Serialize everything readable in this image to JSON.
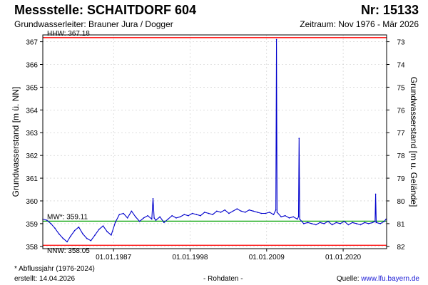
{
  "header": {
    "station": "Messstelle: SCHAITDORF 604",
    "number": "Nr: 15133",
    "aquifer": "Grundwasserleiter:   Brauner Jura / Dogger",
    "period": "Zeitraum: Nov 1976 - Mär 2026"
  },
  "footer": {
    "footnote": "* Abflussjahr (1976-2024)",
    "created": "erstellt:  14.04.2026",
    "rawdata": "- Rohdaten -",
    "source_label": "Quelle:",
    "source_link": "www.lfu.bayern.de"
  },
  "colors": {
    "series": "#0000cc",
    "hhw": "#ff0000",
    "nnw": "#ff0000",
    "mw": "#00a000",
    "grid": "#c8c8c8"
  },
  "chart_data": {
    "type": "line",
    "ylabel_left": "Grundwasserstand [m ü. NN]",
    "ylabel_right": "Grundwasserstand [m u. Gelände]",
    "x_range": [
      "1976-11-01",
      "2026-03-31"
    ],
    "ylim": [
      357.9,
      367.3
    ],
    "yticks_left": [
      358,
      359,
      360,
      361,
      362,
      363,
      364,
      365,
      366,
      367
    ],
    "yticks_right": [
      73,
      74,
      75,
      76,
      77,
      78,
      79,
      80,
      81,
      82
    ],
    "right_axis_reference": 440.0,
    "xticks": [
      {
        "date": "1987-01-01",
        "label": "01.01.1987"
      },
      {
        "date": "1998-01-01",
        "label": "01.01.1998"
      },
      {
        "date": "2009-01-01",
        "label": "01.01.2009"
      },
      {
        "date": "2020-01-01",
        "label": "01.01.2020"
      }
    ],
    "grid": true,
    "reference_lines": [
      {
        "name": "HHW",
        "label": "HHW: 367.18",
        "value": 367.18
      },
      {
        "name": "MW",
        "label": "MW*: 359.11",
        "value": 359.11
      },
      {
        "name": "NNW",
        "label": "NNW: 358.05",
        "value": 358.05
      }
    ],
    "series": [
      {
        "x": [
          "1976-11-01",
          "1977-06-01",
          "1978-01-01",
          "1978-08-01",
          "1979-03-01",
          "1979-10-01",
          "1980-05-01",
          "1980-11-01",
          "1981-06-01",
          "1982-01-01",
          "1982-08-01",
          "1983-03-01",
          "1983-10-01",
          "1984-05-01",
          "1984-12-01",
          "1985-07-01",
          "1986-02-01",
          "1986-09-01",
          "1987-04-01",
          "1987-11-01",
          "1988-06-01",
          "1989-01-01",
          "1989-08-01",
          "1990-03-01",
          "1990-10-01",
          "1991-05-01",
          "1991-12-01",
          "1992-07-01",
          "1992-09-01",
          "1992-11-01",
          "1993-02-01",
          "1993-09-01",
          "1994-04-01",
          "1994-11-01",
          "1995-06-01",
          "1996-01-01",
          "1996-08-01",
          "1997-03-01",
          "1997-10-01",
          "1998-05-01",
          "1998-12-01",
          "1999-07-01",
          "2000-02-01",
          "2000-09-01",
          "2001-04-01",
          "2001-11-01",
          "2002-06-01",
          "2003-01-01",
          "2003-08-01",
          "2004-03-01",
          "2004-10-01",
          "2005-05-01",
          "2005-12-01",
          "2006-07-01",
          "2007-02-01",
          "2007-09-01",
          "2008-04-01",
          "2008-11-01",
          "2009-06-01",
          "2010-01-01",
          "2010-05-01",
          "2010-06-01",
          "2010-07-01",
          "2011-02-01",
          "2011-09-01",
          "2012-04-01",
          "2012-11-01",
          "2013-06-01",
          "2013-08-01",
          "2013-09-01",
          "2013-10-01",
          "2014-05-01",
          "2014-12-01",
          "2015-07-01",
          "2016-02-01",
          "2016-09-01",
          "2017-04-01",
          "2017-11-01",
          "2018-06-01",
          "2019-01-01",
          "2019-08-01",
          "2020-03-01",
          "2020-10-01",
          "2021-05-01",
          "2021-12-01",
          "2022-07-01",
          "2023-02-01",
          "2023-09-01",
          "2024-04-01",
          "2024-08-01",
          "2024-09-01",
          "2024-10-01",
          "2025-05-01",
          "2025-12-01",
          "2026-03-01"
        ],
        "y": [
          359.2,
          359.15,
          359.0,
          358.8,
          358.55,
          358.35,
          358.2,
          358.45,
          358.7,
          358.85,
          358.55,
          358.35,
          358.25,
          358.5,
          358.75,
          358.9,
          358.65,
          358.5,
          359.05,
          359.4,
          359.45,
          359.25,
          359.55,
          359.3,
          359.1,
          359.25,
          359.35,
          359.2,
          360.1,
          359.25,
          359.15,
          359.3,
          359.05,
          359.2,
          359.35,
          359.25,
          359.3,
          359.4,
          359.35,
          359.45,
          359.4,
          359.35,
          359.5,
          359.45,
          359.4,
          359.55,
          359.5,
          359.6,
          359.45,
          359.55,
          359.65,
          359.55,
          359.5,
          359.6,
          359.55,
          359.5,
          359.45,
          359.45,
          359.5,
          359.4,
          359.6,
          367.1,
          359.5,
          359.3,
          359.35,
          359.25,
          359.3,
          359.2,
          359.3,
          362.75,
          359.2,
          359.0,
          359.05,
          359.0,
          358.95,
          359.05,
          359.0,
          359.1,
          358.95,
          359.05,
          359.0,
          359.1,
          358.95,
          359.05,
          359.0,
          358.95,
          359.05,
          359.0,
          359.05,
          359.1,
          360.3,
          359.05,
          359.0,
          359.1,
          359.2
        ]
      }
    ]
  }
}
